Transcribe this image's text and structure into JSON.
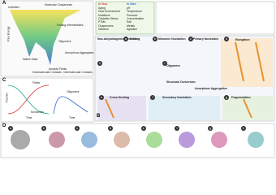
{
  "panel_letters": {
    "a": "A",
    "b": "B",
    "c": "C",
    "d": "D"
  },
  "panel_a": {
    "axis": "Free Energy",
    "labels": [
      "Unfolded",
      "Molecular Chaperones",
      "Folding Intermediates",
      "Native State",
      "Oligomers",
      "Amorphous Aggregates",
      "Amyloid Fibrils",
      "Intramolecular Contacts",
      "Intermolecular Contacts"
    ]
  },
  "conditions": {
    "in_vivo_title": "In Vivo",
    "in_vivo": [
      "Aging",
      "Host Environment",
      "Mutations",
      "Oxidative Stress",
      "PTMs",
      "Chaperones",
      "Infection"
    ],
    "in_vitro_title": "In Vitro",
    "in_vitro": [
      "pH",
      "Temperature",
      "Pressure",
      "Concentration",
      "Salt",
      "Metals",
      "Agitation"
    ]
  },
  "panel_b": {
    "steps": [
      "Non-Amyloidogenic Interactions",
      "Folding",
      "Monomer Nucleation",
      "Primary Nucleation",
      "Elongation",
      "Oligomers",
      "Structural Conversion",
      "Amorphous Aggregation",
      "Cross-Seeding",
      "Secondary Nucleation",
      "Fragmentation"
    ],
    "sub_letters": [
      "a",
      "b",
      "c",
      "d",
      "e",
      "f",
      "g",
      "h",
      "i"
    ]
  },
  "panel_c": {
    "y_label": "Fraction",
    "x_label": "Time",
    "curve_labels": [
      "Monomers",
      "Fibrils",
      "Oligomers"
    ]
  },
  "panel_d": {
    "sub_letters": [
      "a",
      "b",
      "c",
      "d",
      "e",
      "f",
      "g",
      "h"
    ]
  }
}
